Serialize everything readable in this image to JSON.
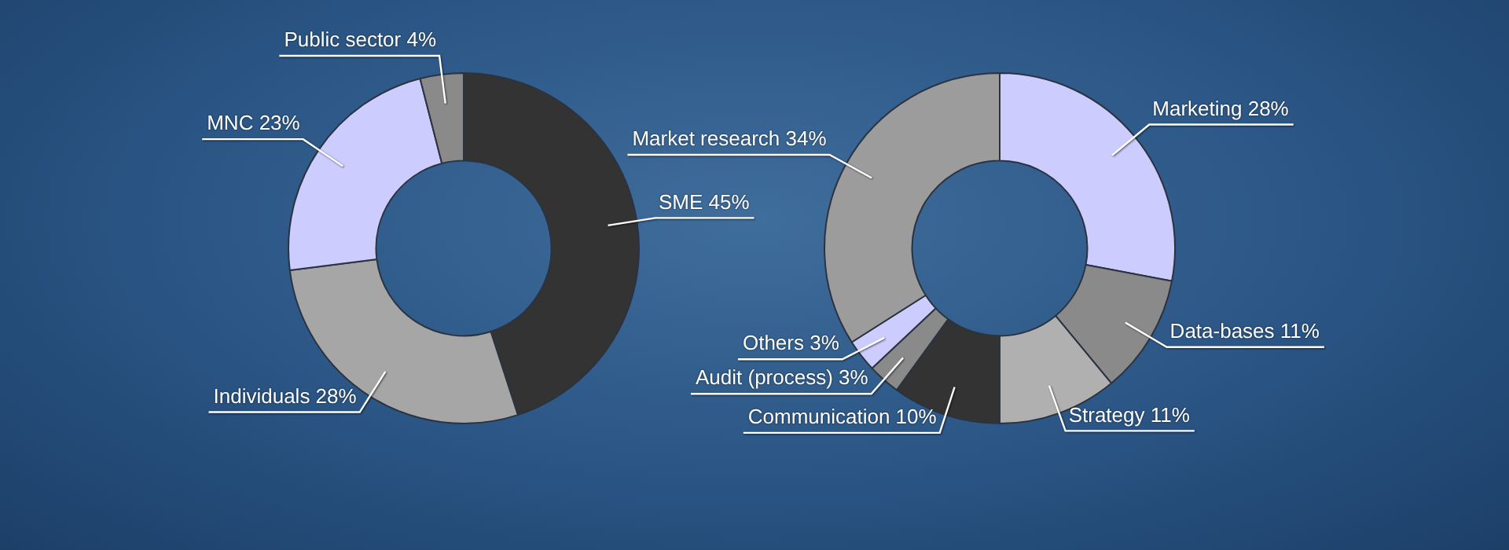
{
  "chart_data": [
    {
      "type": "donut",
      "categories": [
        "SME",
        "Individuals",
        "MNC",
        "Public sector"
      ],
      "values": [
        45,
        28,
        23,
        4
      ],
      "value_labels": [
        "45%",
        "28%",
        "23%",
        "4%"
      ],
      "colors": [
        "#333333",
        "#a6a6a6",
        "#ccccff",
        "#8a8a8a"
      ],
      "legend": false
    },
    {
      "type": "donut",
      "categories": [
        "Marketing",
        "Data-bases",
        "Strategy",
        "Communication",
        "Audit (process)",
        "Others",
        "Market research"
      ],
      "values": [
        28,
        11,
        11,
        10,
        3,
        3,
        34
      ],
      "value_labels": [
        "28%",
        "11%",
        "11%",
        "10%",
        "3%",
        "3%",
        "34%"
      ],
      "colors": [
        "#ccccff",
        "#8a8a8a",
        "#b0b0b0",
        "#333333",
        "#8a8a8a",
        "#ccccff",
        "#9c9c9c"
      ],
      "legend": false
    }
  ]
}
